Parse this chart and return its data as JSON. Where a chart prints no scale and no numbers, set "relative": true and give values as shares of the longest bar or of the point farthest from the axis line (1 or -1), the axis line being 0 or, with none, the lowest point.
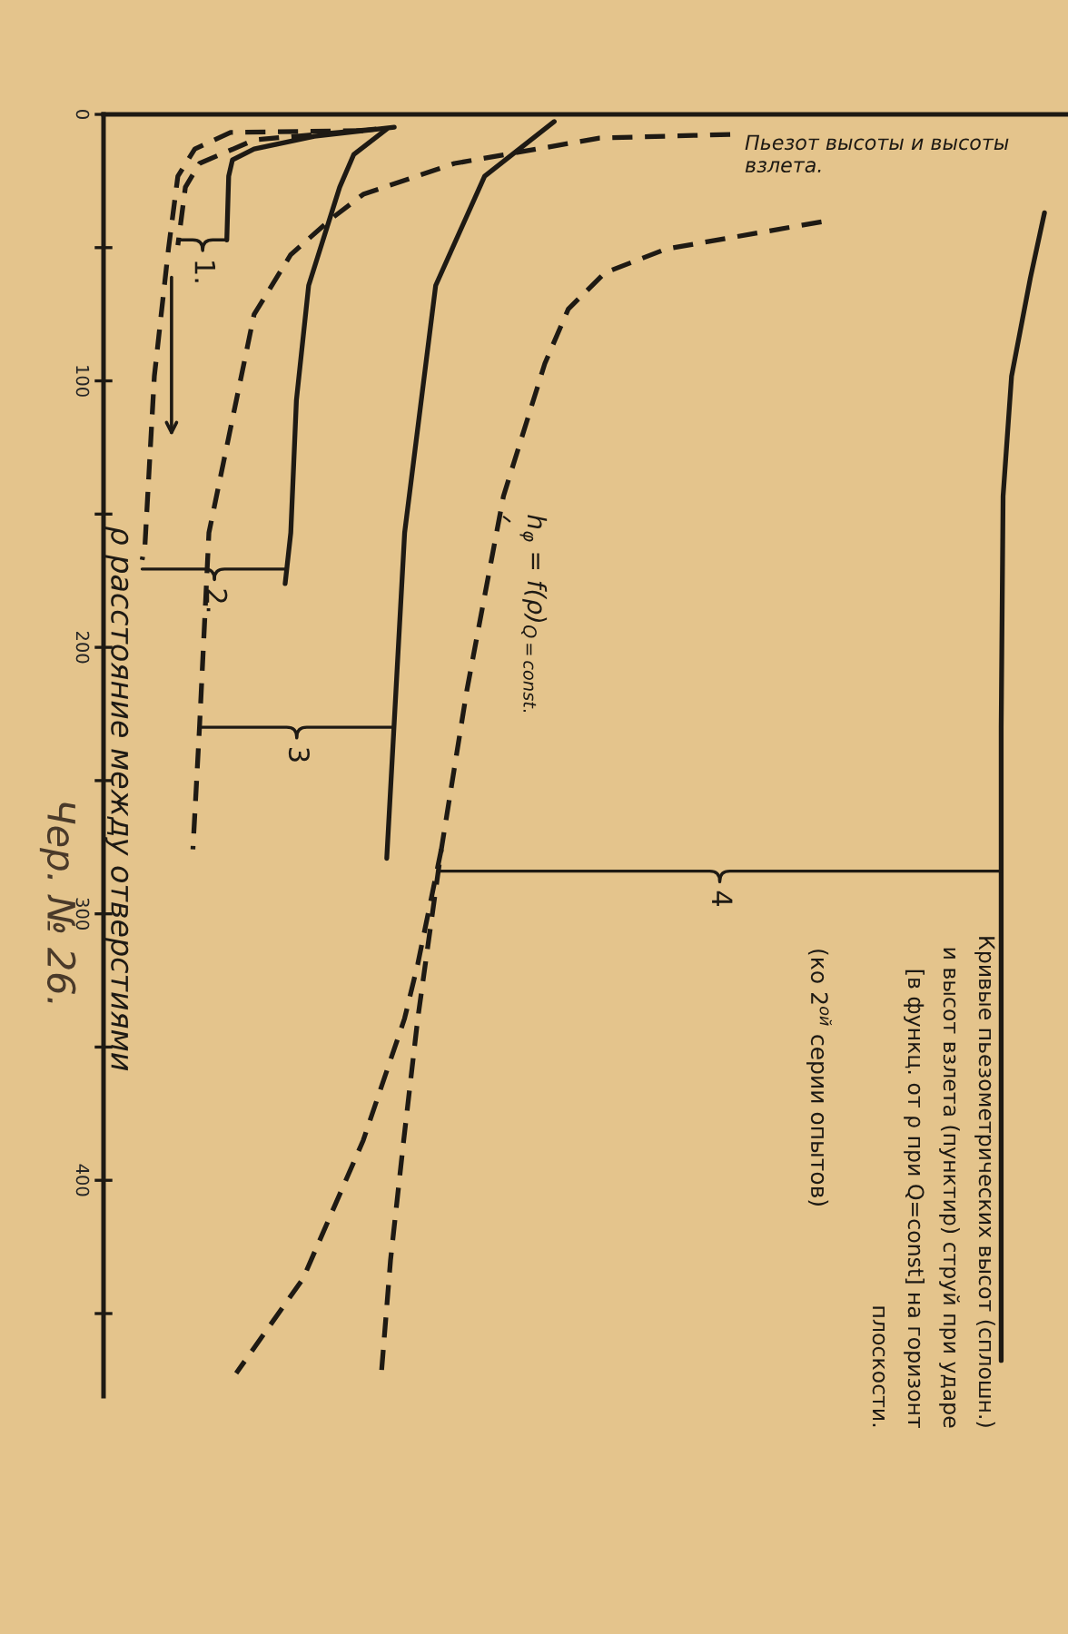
{
  "chart_data": {
    "type": "line",
    "orientation": "horizontal",
    "relative": true,
    "title": "Кривые пьезометрических высот (сплошн.)\nи высот взлета (пунктир) струй при ударе\n[в функц. от ρ при Q=const] на горизонт\nплоскости.",
    "subtitle": "(ко 2$^{ой}$ серии опытов)",
    "ylabel": "ρ расстояние между отверстиями",
    "ylim": [
      481,
      0
    ],
    "yticks": [
      0,
      {
        "value": 50,
        "label": null
      },
      100,
      {
        "value": 150,
        "label": null
      },
      200,
      {
        "value": 250,
        "label": null
      },
      300,
      {
        "value": 350,
        "label": null
      },
      400,
      {
        "value": 450,
        "label": null
      }
    ],
    "tick_labels": "y",
    "series": [
      {
        "color": "#1e1a14",
        "line_style": "dashed",
        "x": [
          5.5,
          9.6,
          18.4,
          27.3,
          49.1
        ],
        "values": [
          0.29,
          0.16,
          0.102,
          0.087,
          0.079
        ]
      },
      {
        "color": "#1e1a14",
        "line_style": "solid",
        "x": [
          4.8,
          8.2,
          13.0,
          17.1,
          23.2,
          47.1
        ],
        "values": [
          0.309,
          0.224,
          0.16,
          0.137,
          0.133,
          0.131
        ]
      },
      {
        "color": "#1e1a14",
        "line_style": "dashed",
        "x": [
          6.1,
          6.8,
          13.0,
          23.2,
          50.5,
          98.3,
          161.8,
          167.2
        ],
        "values": [
          0.276,
          0.135,
          0.097,
          0.079,
          0.069,
          0.054,
          0.044,
          0.041
        ]
      },
      {
        "color": "#1e1a14",
        "line_style": "solid",
        "x": [
          5.5,
          15.0,
          27.3,
          64.2,
          107.2,
          157.0,
          176.1
        ],
        "values": [
          0.301,
          0.266,
          0.251,
          0.218,
          0.205,
          0.199,
          0.193
        ]
      },
      {
        "color": "#1e1a14",
        "line_style": "dashed",
        "x": [
          7.5,
          8.9,
          18.4,
          30.0,
          38.9,
          52.6,
          75.1,
          157.0,
          230.0,
          275.8
        ],
        "values": [
          0.666,
          0.527,
          0.373,
          0.276,
          0.243,
          0.199,
          0.16,
          0.112,
          0.102,
          0.095
        ]
      },
      {
        "color": "#1e1a14",
        "line_style": "solid",
        "x": [
          2.7,
          23.2,
          64.2,
          157.0,
          279.2
        ],
        "values": [
          0.479,
          0.405,
          0.353,
          0.32,
          0.301
        ]
      },
      {
        "color": "#1e1a14",
        "line_style": "dashed",
        "x": [
          40.3,
          50.5,
          59.4,
          73.0,
          93.5,
          143.3,
          216.4,
          275.8,
          339.2,
          385.0,
          430.0,
          473.7
        ],
        "values": [
          0.763,
          0.598,
          0.533,
          0.494,
          0.469,
          0.425,
          0.386,
          0.359,
          0.334,
          0.319,
          0.305,
          0.295
        ]
      },
      {
        "color": "#1e1a14",
        "line_style": "solid",
        "x": [
          36.9,
          61.4,
          98.3,
          143.3,
          230.0,
          467.6
        ],
        "values": [
          1.0,
          0.985,
          0.965,
          0.956,
          0.954,
          0.954
        ]
      },
      {
        "color": "#1e1a14",
        "line_style": "dashed",
        "x": [
          275.8,
          318.8,
          339.2,
          385.0,
          436.9,
          472.4
        ],
        "values": [
          0.359,
          0.334,
          0.32,
          0.276,
          0.212,
          0.141
        ]
      }
    ],
    "annotations": [
      {
        "text": "1.",
        "x": 0.131,
        "y": 47.1
      },
      {
        "text": "2.",
        "x": 0.195,
        "y": 170.6
      },
      {
        "text": "3",
        "x": 0.309,
        "y": 230
      },
      {
        "text": "4",
        "x": 0.954,
        "y": 284
      },
      {
        "text": "h$_{φ}$ = f(ρ)$_{Q=const.}$",
        "x": 0.421,
        "y": 150
      },
      "Пьезот высоты и высоты\nвзлета.",
      "Чер. № 26."
    ]
  }
}
